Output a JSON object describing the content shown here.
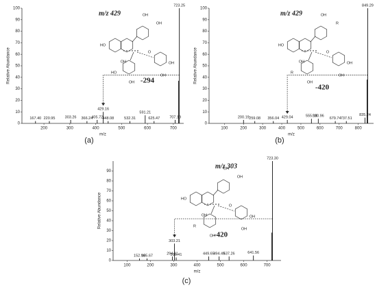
{
  "chart_data": [
    {
      "type": "bar",
      "panel_label": "(a)",
      "xlabel": "m/z",
      "ylabel": "Relative Abundance",
      "ion_label": "m/z 429",
      "loss_label": "-294",
      "structure_labels": [
        "OH",
        "OH",
        "HO",
        "OH",
        "O",
        "HO",
        "OH",
        "OH",
        "OH"
      ],
      "x": [
        167.4,
        220.95,
        303.26,
        366.24,
        405.72,
        429.16,
        448.08,
        532.31,
        591.21,
        625.47,
        707.19,
        720,
        723.25
      ],
      "peak_labels": [
        "167.40",
        "220.95",
        "303.26",
        "366.24",
        "405.72",
        "429.16",
        "448.08",
        "532.31",
        "591.21",
        "625.47",
        "707.19",
        null,
        "723.25"
      ],
      "values": [
        2,
        2,
        3,
        2,
        3,
        10,
        2,
        2,
        7,
        2,
        3,
        37,
        100
      ],
      "color": "#111111",
      "xlim": [
        115,
        740
      ],
      "xticks": [
        200,
        300,
        400,
        500,
        600,
        700
      ],
      "ylim": [
        0,
        100
      ],
      "yticks": [
        0,
        10,
        20,
        30,
        40,
        50,
        60,
        70,
        80,
        90,
        100
      ]
    },
    {
      "type": "bar",
      "panel_label": "(b)",
      "xlabel": "m/z",
      "ylabel": "Relative Abundance",
      "ion_label": "m/z 429",
      "loss_label": "-420",
      "structure_labels": [
        "OH",
        "R",
        "HO",
        "OH",
        "O",
        "R",
        "OH",
        "OH",
        "OH"
      ],
      "x": [
        200.19,
        259.08,
        356.04,
        429.04,
        555.18,
        590.96,
        679.74,
        737.51,
        835.24,
        846,
        849.29
      ],
      "peak_labels": [
        "200.19",
        "259.08",
        "356.04",
        "429.04",
        "555.18",
        "590.96",
        "679.74",
        "737.51",
        "835.24",
        null,
        "849.29"
      ],
      "values": [
        3,
        2,
        2,
        3,
        4,
        4,
        2,
        2,
        5,
        38,
        100
      ],
      "color": "#111111",
      "xlim": [
        20,
        880
      ],
      "xticks": [
        100,
        200,
        300,
        400,
        500,
        600,
        700,
        800
      ],
      "ylim": [
        0,
        100
      ],
      "yticks": [
        0,
        10,
        20,
        30,
        40,
        50,
        60,
        70,
        80,
        90,
        100
      ]
    },
    {
      "type": "bar",
      "panel_label": "(c)",
      "xlabel": "m/z",
      "ylabel": "Relative Abundance",
      "ion_label": "m/z 303",
      "loss_label": "-420",
      "structure_labels": [
        "OH",
        "OH",
        "HO",
        "OH",
        "O",
        "R",
        "OH",
        "OH",
        "OH"
      ],
      "x": [
        152.96,
        185.67,
        294.11,
        303.21,
        310.41,
        449.65,
        494.49,
        537.26,
        641.56,
        720,
        723.3
      ],
      "peak_labels": [
        "152.96",
        "185.67",
        "294.11",
        "303.21",
        "310.41",
        "449.65",
        "494.49",
        "537.26",
        "641.56",
        null,
        "723.30"
      ],
      "values": [
        2,
        2,
        4,
        17,
        3,
        4,
        4,
        4,
        5,
        28,
        100
      ],
      "color": "#111111",
      "xlim": [
        40,
        760
      ],
      "xticks": [
        100,
        200,
        300,
        400,
        500,
        600,
        700
      ],
      "ylim": [
        0,
        100
      ],
      "yticks": [
        0,
        10,
        20,
        30,
        40,
        50,
        60,
        70,
        80,
        90
      ]
    }
  ]
}
